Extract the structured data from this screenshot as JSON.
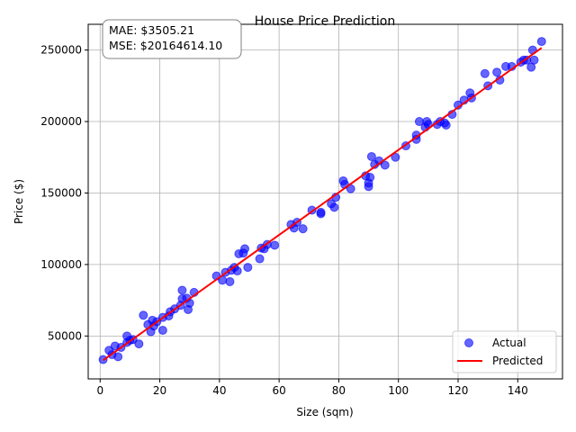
{
  "chart_data": {
    "type": "scatter",
    "title": "House Price Prediction",
    "xlabel": "Size (sqm)",
    "ylabel": "Price ($)",
    "xlim": [
      -4,
      155
    ],
    "ylim": [
      20000,
      268000
    ],
    "xticks": [
      0,
      20,
      40,
      60,
      80,
      100,
      120,
      140
    ],
    "yticks": [
      50000,
      100000,
      150000,
      200000,
      250000
    ],
    "grid": true,
    "legend": {
      "position": "bottom-right",
      "entries": [
        "Actual",
        "Predicted"
      ]
    },
    "metrics": {
      "mae": "MAE: $3505.21",
      "mse": "MSE: $20164614.10"
    },
    "colors": {
      "actual": "#0000ff",
      "predicted": "#ff0000",
      "grid": "#b0b0b0"
    },
    "series": [
      {
        "name": "Actual",
        "kind": "scatter",
        "points": [
          [
            1,
            33500
          ],
          [
            3,
            40000
          ],
          [
            4,
            37000
          ],
          [
            5,
            43000
          ],
          [
            6,
            35500
          ],
          [
            7,
            42000
          ],
          [
            9,
            50000
          ],
          [
            9,
            45500
          ],
          [
            10,
            47000
          ],
          [
            11,
            47500
          ],
          [
            13,
            44500
          ],
          [
            14.5,
            64500
          ],
          [
            16,
            58000
          ],
          [
            17,
            53000
          ],
          [
            17.5,
            61000
          ],
          [
            18,
            57000
          ],
          [
            19,
            60000
          ],
          [
            21,
            63000
          ],
          [
            21,
            54000
          ],
          [
            23,
            64000
          ],
          [
            23.5,
            67000
          ],
          [
            25,
            69000
          ],
          [
            27,
            71500
          ],
          [
            27.5,
            76000
          ],
          [
            27.5,
            82000
          ],
          [
            29,
            76500
          ],
          [
            29.5,
            68500
          ],
          [
            30,
            73000
          ],
          [
            31.5,
            80500
          ],
          [
            39,
            92000
          ],
          [
            41,
            89000
          ],
          [
            42,
            94500
          ],
          [
            43.5,
            88000
          ],
          [
            44,
            96000
          ],
          [
            45,
            98000
          ],
          [
            46,
            95500
          ],
          [
            46.5,
            107500
          ],
          [
            48,
            108000
          ],
          [
            48.5,
            111000
          ],
          [
            49.5,
            98000
          ],
          [
            53.5,
            104000
          ],
          [
            54,
            111500
          ],
          [
            55,
            111000
          ],
          [
            56,
            114000
          ],
          [
            58.5,
            113500
          ],
          [
            64,
            128000
          ],
          [
            65,
            125500
          ],
          [
            66,
            129500
          ],
          [
            68,
            125000
          ],
          [
            71,
            138000
          ],
          [
            74,
            136500
          ],
          [
            74,
            135500
          ],
          [
            77.5,
            142500
          ],
          [
            78.5,
            140000
          ],
          [
            79,
            147000
          ],
          [
            81.5,
            158500
          ],
          [
            82,
            156000
          ],
          [
            84,
            153000
          ],
          [
            89,
            162000
          ],
          [
            90,
            157000
          ],
          [
            90,
            154500
          ],
          [
            90.5,
            161000
          ],
          [
            91,
            175500
          ],
          [
            92,
            170000
          ],
          [
            93.5,
            172500
          ],
          [
            95.5,
            169500
          ],
          [
            99,
            175000
          ],
          [
            102.5,
            183000
          ],
          [
            106,
            190500
          ],
          [
            106,
            187500
          ],
          [
            107,
            200000
          ],
          [
            109,
            196000
          ],
          [
            109.5,
            200000
          ],
          [
            110,
            198000
          ],
          [
            113,
            198000
          ],
          [
            114,
            200000
          ],
          [
            115.5,
            199000
          ],
          [
            116,
            197500
          ],
          [
            118,
            205000
          ],
          [
            120,
            211500
          ],
          [
            122,
            215000
          ],
          [
            124,
            220000
          ],
          [
            124.5,
            216500
          ],
          [
            129,
            233500
          ],
          [
            130,
            225000
          ],
          [
            133,
            234500
          ],
          [
            134,
            229000
          ],
          [
            136,
            238500
          ],
          [
            138,
            238500
          ],
          [
            141,
            241500
          ],
          [
            142,
            243000
          ],
          [
            143,
            243000
          ],
          [
            144.5,
            238000
          ],
          [
            145,
            250000
          ],
          [
            145.5,
            243000
          ],
          [
            148,
            256000
          ]
        ]
      },
      {
        "name": "Predicted",
        "kind": "line",
        "points": [
          [
            1,
            33000
          ],
          [
            148,
            251500
          ]
        ]
      }
    ]
  }
}
